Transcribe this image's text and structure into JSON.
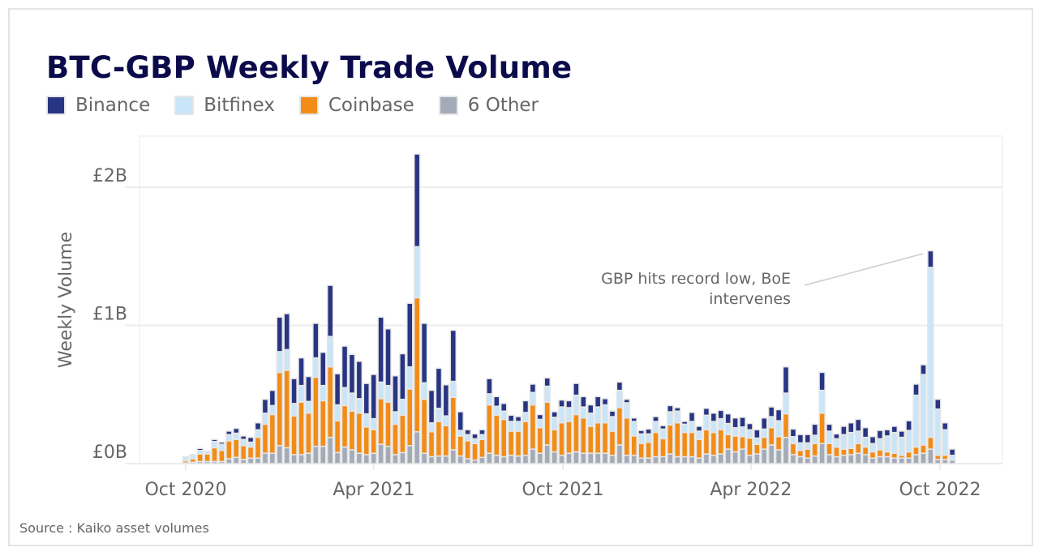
{
  "title": "BTC-GBP Weekly Trade Volume",
  "source": "Source : Kaiko asset volumes",
  "chart_data": {
    "type": "bar",
    "stacked": true,
    "title": "BTC-GBP Weekly Trade Volume",
    "ylabel": "Weekly Volume",
    "xlabel": "",
    "unit": "GBP billions",
    "ylim": [
      0,
      2.35
    ],
    "yticks": [
      {
        "value": 0,
        "label": "£0B"
      },
      {
        "value": 1,
        "label": "£1B"
      },
      {
        "value": 2,
        "label": "£2B"
      }
    ],
    "xticks": [
      {
        "date": "2020-10-01",
        "label": "Oct 2020"
      },
      {
        "date": "2021-04-01",
        "label": "Apr 2021"
      },
      {
        "date": "2021-10-01",
        "label": "Oct 2021"
      },
      {
        "date": "2022-04-01",
        "label": "Apr 2022"
      },
      {
        "date": "2022-10-01",
        "label": "Oct 2022"
      }
    ],
    "grid": "horizontal",
    "legend_position": "top-left",
    "annotation": {
      "lines": [
        "GBP hits record low, BoE",
        "intervenes"
      ],
      "date": "2022-09-25"
    },
    "x": [
      "2020-10-04",
      "2020-10-11",
      "2020-10-18",
      "2020-10-25",
      "2020-11-01",
      "2020-11-08",
      "2020-11-15",
      "2020-11-22",
      "2020-11-29",
      "2020-12-06",
      "2020-12-13",
      "2020-12-20",
      "2020-12-27",
      "2021-01-03",
      "2021-01-10",
      "2021-01-17",
      "2021-01-24",
      "2021-01-31",
      "2021-02-07",
      "2021-02-14",
      "2021-02-21",
      "2021-02-28",
      "2021-03-07",
      "2021-03-14",
      "2021-03-21",
      "2021-03-28",
      "2021-04-04",
      "2021-04-11",
      "2021-04-18",
      "2021-04-25",
      "2021-05-02",
      "2021-05-09",
      "2021-05-16",
      "2021-05-23",
      "2021-05-30",
      "2021-06-06",
      "2021-06-13",
      "2021-06-20",
      "2021-06-27",
      "2021-07-04",
      "2021-07-11",
      "2021-07-18",
      "2021-07-25",
      "2021-08-01",
      "2021-08-08",
      "2021-08-15",
      "2021-08-22",
      "2021-08-29",
      "2021-09-05",
      "2021-09-12",
      "2021-09-19",
      "2021-09-26",
      "2021-10-03",
      "2021-10-10",
      "2021-10-17",
      "2021-10-24",
      "2021-10-31",
      "2021-11-07",
      "2021-11-14",
      "2021-11-21",
      "2021-11-28",
      "2021-12-05",
      "2021-12-12",
      "2021-12-19",
      "2021-12-26",
      "2022-01-02",
      "2022-01-09",
      "2022-01-16",
      "2022-01-23",
      "2022-01-30",
      "2022-02-06",
      "2022-02-13",
      "2022-02-20",
      "2022-02-27",
      "2022-03-06",
      "2022-03-13",
      "2022-03-20",
      "2022-03-27",
      "2022-04-03",
      "2022-04-10",
      "2022-04-17",
      "2022-04-24",
      "2022-05-01",
      "2022-05-08",
      "2022-05-15",
      "2022-05-22",
      "2022-05-29",
      "2022-06-05",
      "2022-06-12",
      "2022-06-19",
      "2022-06-26",
      "2022-07-03",
      "2022-07-10",
      "2022-07-17",
      "2022-07-24",
      "2022-07-31",
      "2022-08-07",
      "2022-08-14",
      "2022-08-21",
      "2022-08-28",
      "2022-09-04",
      "2022-09-11",
      "2022-09-18",
      "2022-09-25",
      "2022-10-02",
      "2022-10-09",
      "2022-10-16"
    ],
    "series": [
      {
        "name": "6 Other",
        "color": "#a3abb8",
        "values": [
          0.005,
          0.01,
          0.015,
          0.015,
          0.015,
          0.015,
          0.035,
          0.045,
          0.03,
          0.04,
          0.04,
          0.075,
          0.075,
          0.13,
          0.115,
          0.065,
          0.065,
          0.075,
          0.125,
          0.125,
          0.19,
          0.08,
          0.12,
          0.1,
          0.075,
          0.065,
          0.075,
          0.14,
          0.125,
          0.065,
          0.08,
          0.13,
          0.23,
          0.075,
          0.05,
          0.055,
          0.055,
          0.1,
          0.055,
          0.035,
          0.025,
          0.045,
          0.075,
          0.06,
          0.05,
          0.06,
          0.055,
          0.06,
          0.105,
          0.075,
          0.135,
          0.085,
          0.06,
          0.075,
          0.085,
          0.075,
          0.075,
          0.075,
          0.075,
          0.06,
          0.135,
          0.06,
          0.06,
          0.04,
          0.04,
          0.05,
          0.05,
          0.07,
          0.05,
          0.05,
          0.05,
          0.04,
          0.07,
          0.06,
          0.07,
          0.105,
          0.085,
          0.105,
          0.06,
          0.07,
          0.105,
          0.135,
          0.1,
          0.19,
          0.065,
          0.05,
          0.04,
          0.055,
          0.145,
          0.065,
          0.05,
          0.06,
          0.065,
          0.075,
          0.065,
          0.04,
          0.05,
          0.05,
          0.04,
          0.04,
          0.04,
          0.065,
          0.075,
          0.105,
          0.03,
          0.03,
          0.025
        ]
      },
      {
        "name": "Coinbase",
        "color": "#f28c17",
        "values": [
          0.015,
          0.025,
          0.055,
          0.055,
          0.1,
          0.08,
          0.13,
          0.13,
          0.1,
          0.08,
          0.15,
          0.21,
          0.28,
          0.53,
          0.56,
          0.28,
          0.38,
          0.29,
          0.5,
          0.33,
          0.51,
          0.23,
          0.3,
          0.28,
          0.29,
          0.2,
          0.17,
          0.33,
          0.32,
          0.22,
          0.27,
          0.41,
          0.97,
          0.39,
          0.18,
          0.25,
          0.22,
          0.38,
          0.145,
          0.13,
          0.12,
          0.13,
          0.35,
          0.29,
          0.27,
          0.175,
          0.18,
          0.245,
          0.32,
          0.185,
          0.31,
          0.16,
          0.235,
          0.23,
          0.27,
          0.255,
          0.195,
          0.22,
          0.22,
          0.175,
          0.27,
          0.27,
          0.14,
          0.105,
          0.115,
          0.175,
          0.13,
          0.21,
          0.245,
          0.175,
          0.175,
          0.135,
          0.175,
          0.165,
          0.175,
          0.105,
          0.115,
          0.09,
          0.125,
          0.07,
          0.085,
          0.125,
          0.095,
          0.17,
          0.08,
          0.045,
          0.065,
          0.09,
          0.22,
          0.08,
          0.07,
          0.045,
          0.045,
          0.07,
          0.055,
          0.045,
          0.05,
          0.035,
          0.035,
          0.02,
          0.045,
          0.055,
          0.06,
          0.085,
          0.03,
          0.03,
          0
        ]
      },
      {
        "name": "Bitfinex",
        "color": "#c9e5f8",
        "values": [
          0.03,
          0.03,
          0.025,
          0.02,
          0.045,
          0.045,
          0.045,
          0.045,
          0.045,
          0.035,
          0.055,
          0.08,
          0.065,
          0.15,
          0.15,
          0.09,
          0.12,
          0.085,
          0.14,
          0.11,
          0.22,
          0.115,
          0.13,
          0.13,
          0.105,
          0.095,
          0.08,
          0.12,
          0.12,
          0.09,
          0.115,
          0.16,
          0.37,
          0.12,
          0.065,
          0.095,
          0.07,
          0.115,
          0.04,
          0.045,
          0.035,
          0.035,
          0.08,
          0.065,
          0.06,
          0.07,
          0.07,
          0.065,
          0.09,
          0.06,
          0.115,
          0.09,
          0.115,
          0.1,
          0.14,
          0.08,
          0.095,
          0.115,
          0.13,
          0.105,
          0.125,
          0.11,
          0.105,
          0.07,
          0.06,
          0.08,
          0.07,
          0.095,
          0.085,
          0.06,
          0.08,
          0.06,
          0.105,
          0.08,
          0.08,
          0.08,
          0.06,
          0.07,
          0.06,
          0.045,
          0.06,
          0.08,
          0.115,
          0.15,
          0.05,
          0.055,
          0.045,
          0.06,
          0.165,
          0.09,
          0.06,
          0.105,
          0.115,
          0.09,
          0.07,
          0.06,
          0.08,
          0.115,
          0.15,
          0.13,
          0.155,
          0.375,
          0.51,
          1.23,
          0.335,
          0.185,
          0.035
        ]
      },
      {
        "name": "Binance",
        "color": "#283583",
        "values": [
          0,
          0,
          0.015,
          0,
          0.015,
          0.015,
          0.025,
          0.035,
          0.025,
          0.035,
          0.05,
          0.1,
          0.11,
          0.25,
          0.26,
          0.18,
          0.2,
          0.18,
          0.25,
          0.24,
          0.37,
          0.225,
          0.3,
          0.28,
          0.27,
          0.22,
          0.32,
          0.47,
          0.41,
          0.26,
          0.33,
          0.46,
          0.67,
          0.43,
          0.235,
          0.29,
          0.225,
          0.37,
          0.135,
          0.035,
          0.035,
          0.035,
          0.11,
          0.07,
          0.055,
          0.045,
          0.035,
          0.085,
          0.06,
          0.035,
          0.06,
          0.04,
          0.05,
          0.05,
          0.085,
          0.075,
          0.06,
          0.075,
          0.045,
          0.04,
          0.06,
          0.025,
          0.025,
          0.025,
          0.035,
          0.035,
          0.025,
          0.045,
          0.025,
          0.02,
          0.065,
          0.035,
          0.05,
          0.06,
          0.06,
          0.07,
          0.07,
          0.07,
          0.045,
          0.06,
          0.08,
          0.07,
          0.08,
          0.19,
          0.055,
          0.06,
          0.06,
          0.08,
          0.13,
          0.05,
          0.035,
          0.06,
          0.07,
          0.085,
          0.07,
          0.05,
          0.06,
          0.045,
          0.045,
          0.045,
          0.07,
          0.08,
          0.07,
          0.12,
          0.07,
          0.05,
          0.045
        ]
      }
    ]
  },
  "legend": [
    {
      "label": "Binance",
      "color": "#283583"
    },
    {
      "label": "Bitfinex",
      "color": "#c9e5f8"
    },
    {
      "label": "Coinbase",
      "color": "#f28c17"
    },
    {
      "label": "6 Other",
      "color": "#a3abb8"
    }
  ]
}
